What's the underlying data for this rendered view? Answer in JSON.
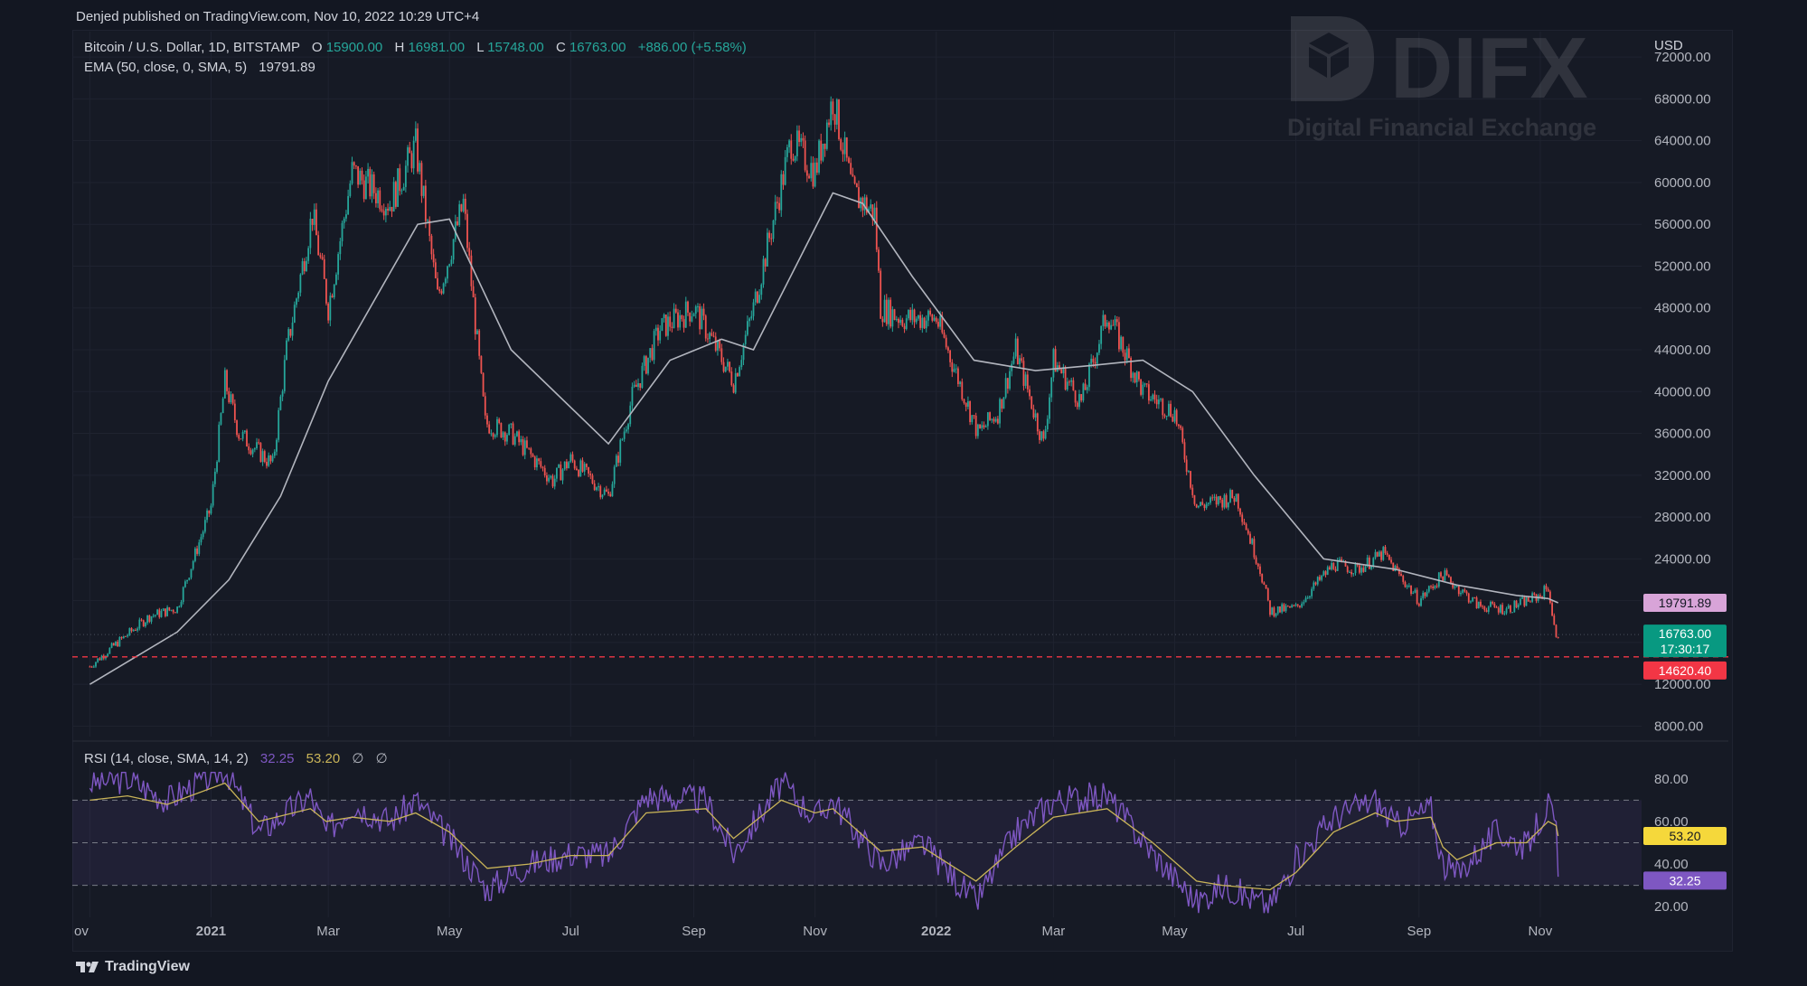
{
  "header": {
    "published": "Denjed published on TradingView.com, Nov 10, 2022 10:29 UTC+4"
  },
  "watermark": {
    "title": "DIFX",
    "subtitle": "Digital Financial Exchange"
  },
  "footer": {
    "brand": "TradingView"
  },
  "legend": {
    "symbol": "Bitcoin / U.S. Dollar, 1D, BITSTAMP",
    "o_label": "O",
    "o_value": "15900.00",
    "h_label": "H",
    "h_value": "16981.00",
    "l_label": "L",
    "l_value": "15748.00",
    "c_label": "C",
    "c_value": "16763.00",
    "change": "+886.00 (+5.58%)",
    "ema_label": "EMA (50, close, 0, SMA, 5)",
    "ema_value": "19791.89",
    "rsi_label": "RSI (14, close, SMA, 14, 2)",
    "rsi_value": "32.25",
    "rsi_ma_value": "53.20",
    "rsi_na1": "∅",
    "rsi_na2": "∅"
  },
  "price_axis": {
    "currency": "USD",
    "ticks": [
      "72000.00",
      "68000.00",
      "64000.00",
      "60000.00",
      "56000.00",
      "52000.00",
      "48000.00",
      "44000.00",
      "40000.00",
      "36000.00",
      "32000.00",
      "28000.00",
      "24000.00",
      "20000.00",
      "16000.00",
      "12000.00",
      "8000.00"
    ]
  },
  "rsi_axis": {
    "ticks": [
      "80.00",
      "60.00",
      "40.00",
      "20.00"
    ]
  },
  "time_axis": {
    "labels": [
      "ov",
      "2021",
      "Mar",
      "May",
      "Jul",
      "Sep",
      "Nov",
      "2022",
      "Mar",
      "May",
      "Jul",
      "Sep",
      "Nov"
    ]
  },
  "price_labels": {
    "ema": "19791.89",
    "last": "16763.00",
    "countdown": "17:30:17",
    "hline": "14620.40",
    "rsi_ma": "53.20",
    "rsi": "32.25"
  },
  "colors": {
    "background": "#131722",
    "up": "#26a69a",
    "down": "#ef5350",
    "ema": "#b2b5be",
    "rsi": "#7e57c2",
    "rsi_ma": "#c9b458",
    "hline": "#f23645"
  },
  "chart_data": [
    {
      "type": "candlestick",
      "title": "Bitcoin / U.S. Dollar, 1D, BITSTAMP",
      "ylabel": "USD",
      "ylim": [
        7000,
        74000
      ],
      "x": [
        "2020-11-01",
        "2020-11-15",
        "2020-12-01",
        "2020-12-15",
        "2021-01-01",
        "2021-01-08",
        "2021-01-15",
        "2021-02-01",
        "2021-02-08",
        "2021-02-21",
        "2021-03-01",
        "2021-03-13",
        "2021-04-01",
        "2021-04-14",
        "2021-04-25",
        "2021-05-08",
        "2021-05-19",
        "2021-06-01",
        "2021-06-22",
        "2021-07-01",
        "2021-07-20",
        "2021-08-01",
        "2021-08-15",
        "2021-09-01",
        "2021-09-07",
        "2021-09-21",
        "2021-10-01",
        "2021-10-20",
        "2021-11-01",
        "2021-11-10",
        "2021-11-20",
        "2021-12-01",
        "2021-12-04",
        "2021-12-15",
        "2022-01-01",
        "2022-01-22",
        "2022-02-01",
        "2022-02-10",
        "2022-02-24",
        "2022-03-01",
        "2022-03-15",
        "2022-03-28",
        "2022-04-15",
        "2022-05-01",
        "2022-05-12",
        "2022-06-01",
        "2022-06-13",
        "2022-06-18",
        "2022-07-01",
        "2022-07-20",
        "2022-08-01",
        "2022-08-14",
        "2022-09-01",
        "2022-09-13",
        "2022-10-01",
        "2022-10-15",
        "2022-11-01",
        "2022-11-05",
        "2022-11-09",
        "2022-11-10"
      ],
      "y": [
        13700,
        16000,
        18500,
        19300,
        29000,
        41000,
        36000,
        33000,
        44000,
        57000,
        48000,
        61000,
        58000,
        63500,
        49000,
        58000,
        37000,
        36000,
        31500,
        33500,
        30000,
        39500,
        46000,
        48000,
        46000,
        41000,
        48000,
        64000,
        61000,
        68000,
        59000,
        57000,
        48000,
        47000,
        47000,
        36000,
        38000,
        44000,
        35000,
        43000,
        39000,
        47500,
        40000,
        38000,
        29000,
        30000,
        23000,
        19000,
        19300,
        23500,
        23000,
        24500,
        20000,
        22500,
        19500,
        19200,
        20500,
        21300,
        16200,
        16763
      ],
      "ema": {
        "name": "EMA (50, close, 0, SMA, 5)",
        "x": [
          "2020-11-01",
          "2020-12-15",
          "2021-01-10",
          "2021-02-05",
          "2021-03-01",
          "2021-04-15",
          "2021-05-01",
          "2021-06-01",
          "2021-07-20",
          "2021-08-20",
          "2021-09-15",
          "2021-10-01",
          "2021-11-10",
          "2021-11-25",
          "2021-12-20",
          "2022-01-20",
          "2022-02-20",
          "2022-03-20",
          "2022-04-15",
          "2022-05-10",
          "2022-06-10",
          "2022-07-15",
          "2022-08-20",
          "2022-09-20",
          "2022-10-20",
          "2022-11-05",
          "2022-11-10"
        ],
        "y": [
          12000,
          17000,
          22000,
          30000,
          41000,
          56000,
          56500,
          44000,
          35000,
          43000,
          45000,
          44000,
          59000,
          58000,
          51000,
          43000,
          42000,
          42500,
          43000,
          40000,
          32000,
          24000,
          23000,
          21500,
          20500,
          20200,
          19791.89
        ]
      },
      "hline": 14620.4
    },
    {
      "type": "line",
      "title": "RSI (14, close, SMA, 14, 2)",
      "ylim": [
        15,
        85
      ],
      "bands": [
        30,
        50,
        70
      ],
      "x": [
        "2020-11-01",
        "2020-11-20",
        "2020-12-10",
        "2021-01-08",
        "2021-01-25",
        "2021-02-20",
        "2021-02-28",
        "2021-03-13",
        "2021-04-01",
        "2021-04-14",
        "2021-05-01",
        "2021-05-20",
        "2021-06-10",
        "2021-07-01",
        "2021-07-20",
        "2021-08-08",
        "2021-09-07",
        "2021-09-21",
        "2021-10-15",
        "2021-11-01",
        "2021-11-10",
        "2021-12-04",
        "2021-12-25",
        "2022-01-21",
        "2022-02-10",
        "2022-03-01",
        "2022-03-28",
        "2022-04-20",
        "2022-05-12",
        "2022-05-25",
        "2022-06-18",
        "2022-07-01",
        "2022-07-20",
        "2022-08-10",
        "2022-08-20",
        "2022-09-07",
        "2022-09-13",
        "2022-09-20",
        "2022-10-10",
        "2022-10-25",
        "2022-11-05",
        "2022-11-09",
        "2022-11-10"
      ],
      "series": [
        {
          "name": "RSI (14, close, SMA, 14, 2)",
          "values": [
            78,
            80,
            70,
            85,
            55,
            72,
            55,
            68,
            60,
            70,
            52,
            28,
            40,
            45,
            44,
            72,
            70,
            45,
            78,
            62,
            70,
            40,
            50,
            22,
            55,
            70,
            72,
            45,
            22,
            30,
            20,
            42,
            62,
            70,
            58,
            66,
            40,
            35,
            55,
            48,
            68,
            55,
            32.25
          ]
        },
        {
          "name": "53.20",
          "values": [
            70,
            72,
            68,
            78,
            60,
            66,
            60,
            62,
            60,
            64,
            55,
            38,
            40,
            44,
            44,
            64,
            66,
            52,
            70,
            64,
            66,
            46,
            48,
            32,
            48,
            62,
            66,
            50,
            32,
            30,
            28,
            36,
            55,
            64,
            60,
            62,
            48,
            42,
            50,
            50,
            60,
            58,
            53.2
          ]
        }
      ]
    }
  ]
}
